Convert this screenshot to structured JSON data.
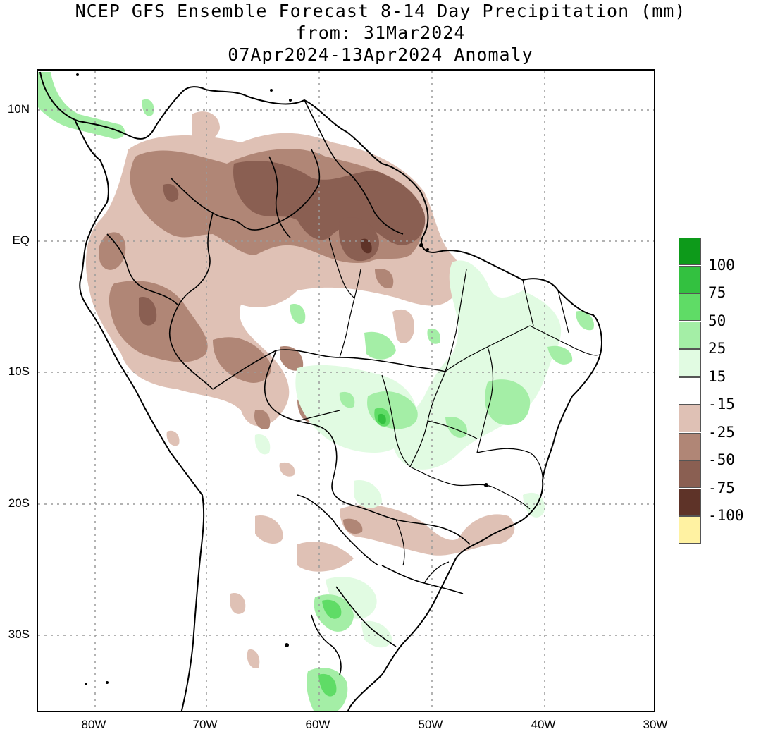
{
  "header": {
    "title": "NCEP GFS Ensemble Forecast 8-14 Day Precipitation (mm)",
    "from_line": "from: 31Mar2024",
    "period_line": "07Apr2024-13Apr2024 Anomaly"
  },
  "axes": {
    "lat_labels": [
      "10N",
      "EQ",
      "10S",
      "20S",
      "30S"
    ],
    "lon_labels": [
      "80W",
      "70W",
      "60W",
      "50W",
      "40W",
      "30W"
    ]
  },
  "legend": {
    "labels": [
      "100",
      "75",
      "50",
      "25",
      "15",
      "-15",
      "-25",
      "-50",
      "-75",
      "-100"
    ],
    "colors": [
      "#0d9a1a",
      "#33c140",
      "#5fdc66",
      "#a4eea6",
      "#e1fbe2",
      "#ffffff",
      "#dfc1b5",
      "#b08676",
      "#8a5f52",
      "#5e3328",
      "#fff2a2"
    ]
  },
  "colors": {
    "brown_light": "#dfc1b5",
    "brown_mid": "#b08676",
    "brown_dark": "#8a5f52",
    "green_light": "#a4eea6",
    "green_mid": "#5fdc66",
    "green_dark": "#33c140",
    "grid": "#9a9a9a"
  }
}
